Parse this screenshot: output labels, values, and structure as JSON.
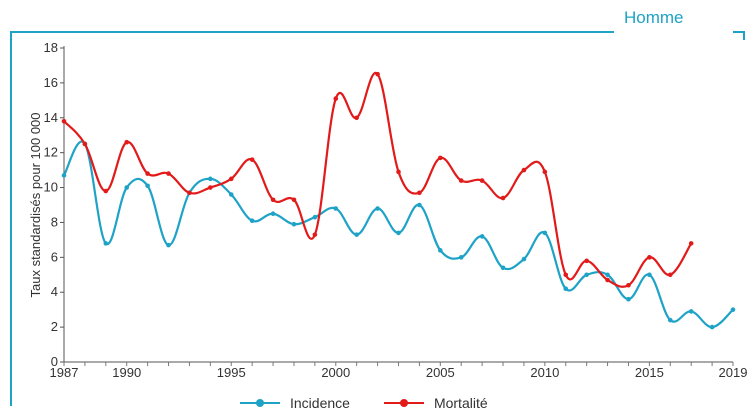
{
  "panel": {
    "title": "Homme",
    "accent_color": "#1ea3c7"
  },
  "chart_data": {
    "type": "line",
    "title": "",
    "xlabel": "",
    "ylabel": "Taux standardisés pour 100 000",
    "xlim": [
      1987,
      2019
    ],
    "ylim": [
      0,
      18
    ],
    "x_ticks": [
      1987,
      1990,
      1995,
      2000,
      2005,
      2010,
      2015,
      2019
    ],
    "y_ticks": [
      0,
      2,
      4,
      6,
      8,
      10,
      12,
      14,
      16,
      18
    ],
    "grid": false,
    "legend_position": "bottom",
    "series": [
      {
        "name": "Incidence",
        "color": "#1ea3c7",
        "x": [
          1987,
          1988,
          1989,
          1990,
          1991,
          1992,
          1993,
          1994,
          1995,
          1996,
          1997,
          1998,
          1999,
          2000,
          2001,
          2002,
          2003,
          2004,
          2005,
          2006,
          2007,
          2008,
          2009,
          2010,
          2011,
          2012,
          2013,
          2014,
          2015,
          2016,
          2017,
          2018,
          2019
        ],
        "values": [
          10.7,
          12.5,
          6.8,
          10.0,
          10.1,
          6.7,
          9.7,
          10.5,
          9.6,
          8.1,
          8.5,
          7.9,
          8.3,
          8.8,
          7.3,
          8.8,
          7.4,
          9.0,
          6.4,
          6.0,
          7.2,
          5.4,
          5.9,
          7.4,
          4.2,
          5.0,
          5.0,
          3.6,
          5.0,
          2.4,
          2.9,
          2.0,
          3.0
        ]
      },
      {
        "name": "Mortalité",
        "color": "#e21a1a",
        "x": [
          1987,
          1988,
          1989,
          1990,
          1991,
          1992,
          1993,
          1994,
          1995,
          1996,
          1997,
          1998,
          1999,
          2000,
          2001,
          2002,
          2003,
          2004,
          2005,
          2006,
          2007,
          2008,
          2009,
          2010,
          2011,
          2012,
          2013,
          2014,
          2015,
          2016,
          2017
        ],
        "values": [
          13.8,
          12.5,
          9.8,
          12.6,
          10.8,
          10.8,
          9.7,
          10.0,
          10.5,
          11.6,
          9.3,
          9.3,
          7.3,
          15.1,
          14.0,
          16.5,
          10.9,
          9.7,
          11.7,
          10.4,
          10.4,
          9.4,
          11.0,
          10.9,
          5.0,
          5.8,
          4.7,
          4.4,
          6.0,
          5.0,
          6.8
        ]
      }
    ]
  }
}
